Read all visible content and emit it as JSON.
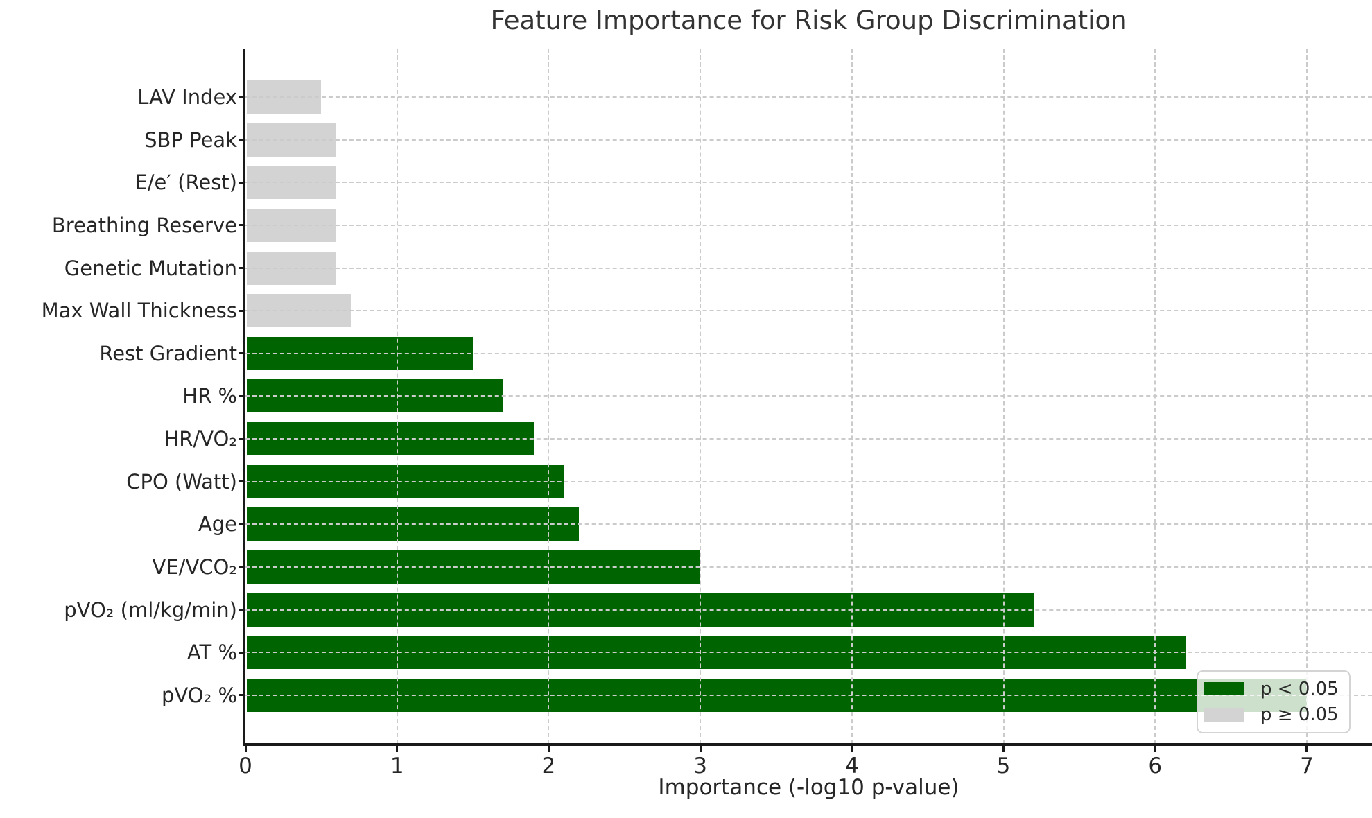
{
  "chart_data": {
    "type": "bar",
    "orientation": "horizontal",
    "title": "Feature Importance for Risk Group Discrimination",
    "xlabel": "Importance (-log10 p-value)",
    "xlim": [
      0,
      7.43
    ],
    "xticks": [
      "0",
      "1",
      "2",
      "3",
      "4",
      "5",
      "6",
      "7"
    ],
    "grid": "dashed gridlines at x ticks and category centers, drawn above bars",
    "bars": [
      {
        "label": "LAV Index",
        "value": 0.5,
        "significant": false
      },
      {
        "label": "SBP Peak",
        "value": 0.6,
        "significant": false
      },
      {
        "label": "E/e′ (Rest)",
        "value": 0.6,
        "significant": false
      },
      {
        "label": "Breathing Reserve",
        "value": 0.6,
        "significant": false
      },
      {
        "label": "Genetic Mutation",
        "value": 0.6,
        "significant": false
      },
      {
        "label": "Max Wall Thickness",
        "value": 0.7,
        "significant": false
      },
      {
        "label": "Rest Gradient",
        "value": 1.5,
        "significant": true
      },
      {
        "label": "HR %",
        "value": 1.7,
        "significant": true
      },
      {
        "label": "HR/VO₂",
        "value": 1.9,
        "significant": true
      },
      {
        "label": "CPO (Watt)",
        "value": 2.1,
        "significant": true
      },
      {
        "label": "Age",
        "value": 2.2,
        "significant": true
      },
      {
        "label": "VE/VCO₂",
        "value": 3.0,
        "significant": true
      },
      {
        "label": "pVO₂ (ml/kg/min)",
        "value": 5.2,
        "significant": true
      },
      {
        "label": "AT %",
        "value": 6.2,
        "significant": true
      },
      {
        "label": "pVO₂ %",
        "value": 7.0,
        "significant": true
      }
    ],
    "legend": {
      "position": "lower right",
      "entries": [
        {
          "label": "p < 0.05",
          "color": "#006400"
        },
        {
          "label": "p ≥ 0.05",
          "color": "#d3d3d3"
        }
      ]
    },
    "colors": {
      "significant": "#006400",
      "nonsignificant": "#d3d3d3",
      "grid": "#cbcbcb",
      "axis": "#1a1a1a",
      "text": "#262626"
    }
  }
}
